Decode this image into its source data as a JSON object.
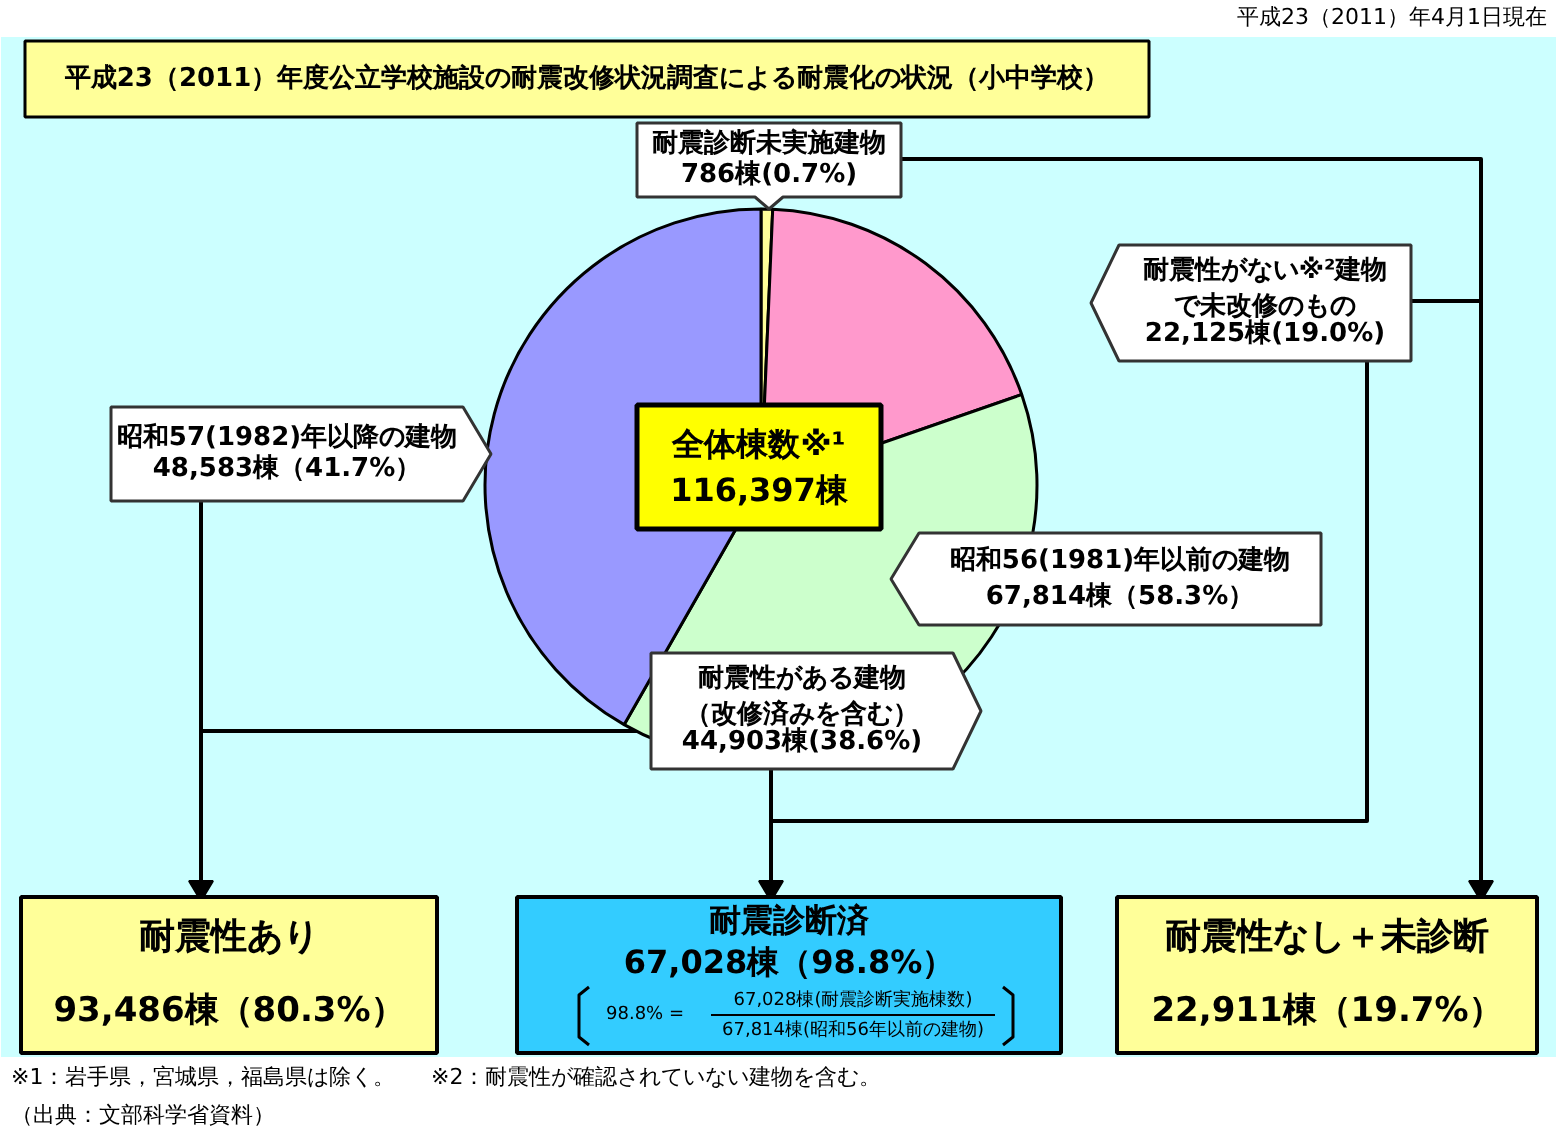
{
  "chart_data": {
    "type": "pie",
    "title": "平成23（2011）年度公立学校施設の耐震改修状況調査による耐震化の状況（小中学校）",
    "subtitle": "平成23（2011）年4月1日現在",
    "categories": [
      "耐震診断未実施建物",
      "耐震性がない※²建物で未改修のもの",
      "耐震性がある建物（改修済みを含む）",
      "昭和57(1982)年以降の建物"
    ],
    "values": [
      786,
      22125,
      44903,
      48583
    ],
    "value_labels": [
      "786棟(0.7%)",
      "22,125棟(19.0%)",
      "44,903棟(38.6%)",
      "48,583棟（41.7%）"
    ],
    "colors": [
      "#ffff99",
      "#ff99cc",
      "#ccffcc",
      "#9999ff"
    ],
    "annotations": [
      "全体棟数※¹\n116,397棟",
      "昭和56(1981)年以前の建物\n67,814棟（58.3%）",
      "耐震性あり",
      "93,486棟（80.3%）",
      "耐震診断済\n67,028棟（98.8%）",
      "98.8% =",
      "67,028棟(耐震診断実施棟数)",
      "67,814棟(昭和56年以前の建物)",
      "耐震性なし＋未診断",
      "22,911棟（19.7%）",
      "※1：岩手県，宮城県，福島県は除く。",
      "※2：耐震性が確認されていない建物を含む。",
      "（出典：文部科学省資料）"
    ]
  }
}
